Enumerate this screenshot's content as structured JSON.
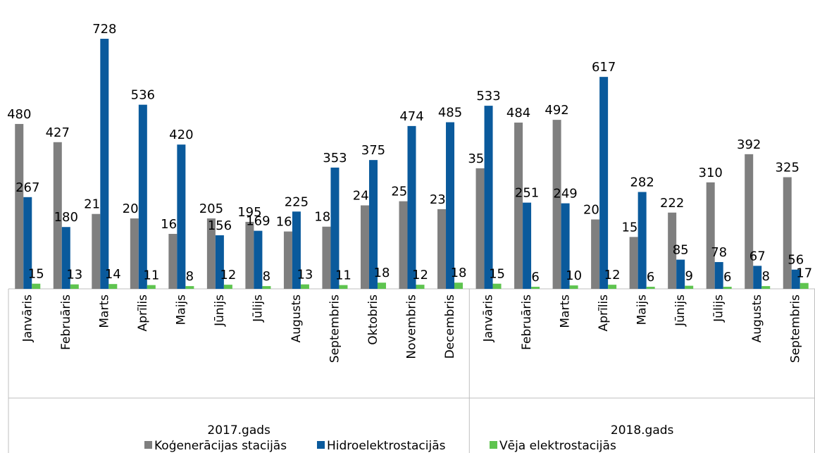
{
  "chart_data": {
    "type": "bar",
    "groups": [
      {
        "label": "2017.gads",
        "categories": [
          "Janvāris",
          "Februāris",
          "Marts",
          "Aprīlis",
          "Maijs",
          "Jūnijs",
          "Jūlijs",
          "Augusts",
          "Septembris",
          "Oktobris",
          "Novembris",
          "Decembris"
        ]
      },
      {
        "label": "2018.gads",
        "categories": [
          "Janvāris",
          "Februāris",
          "Marts",
          "Aprīlis",
          "Maijs",
          "Jūnijs",
          "Jūlijs",
          "Augusts",
          "Septembris"
        ]
      }
    ],
    "series": [
      {
        "name": "Koģenerācijas stacijās",
        "color": "#7f7f7f",
        "values": [
          480,
          427,
          218,
          205,
          160,
          205,
          195,
          167,
          181,
          243,
          255,
          232,
          351,
          484,
          492,
          202,
          151,
          222,
          310,
          392,
          325
        ]
      },
      {
        "name": "Hidroelektrostacijās",
        "color": "#0a5a9c",
        "values": [
          267,
          180,
          728,
          536,
          420,
          156,
          169,
          225,
          353,
          375,
          474,
          485,
          533,
          251,
          249,
          617,
          282,
          85,
          78,
          67,
          56
        ]
      },
      {
        "name": "Vēja elektrostacijās",
        "color": "#5ec44f",
        "values": [
          15,
          13,
          14,
          11,
          8,
          12,
          8,
          13,
          11,
          18,
          12,
          18,
          15,
          6,
          10,
          12,
          6,
          9,
          6,
          8,
          17
        ]
      }
    ],
    "legend": "bottom"
  }
}
